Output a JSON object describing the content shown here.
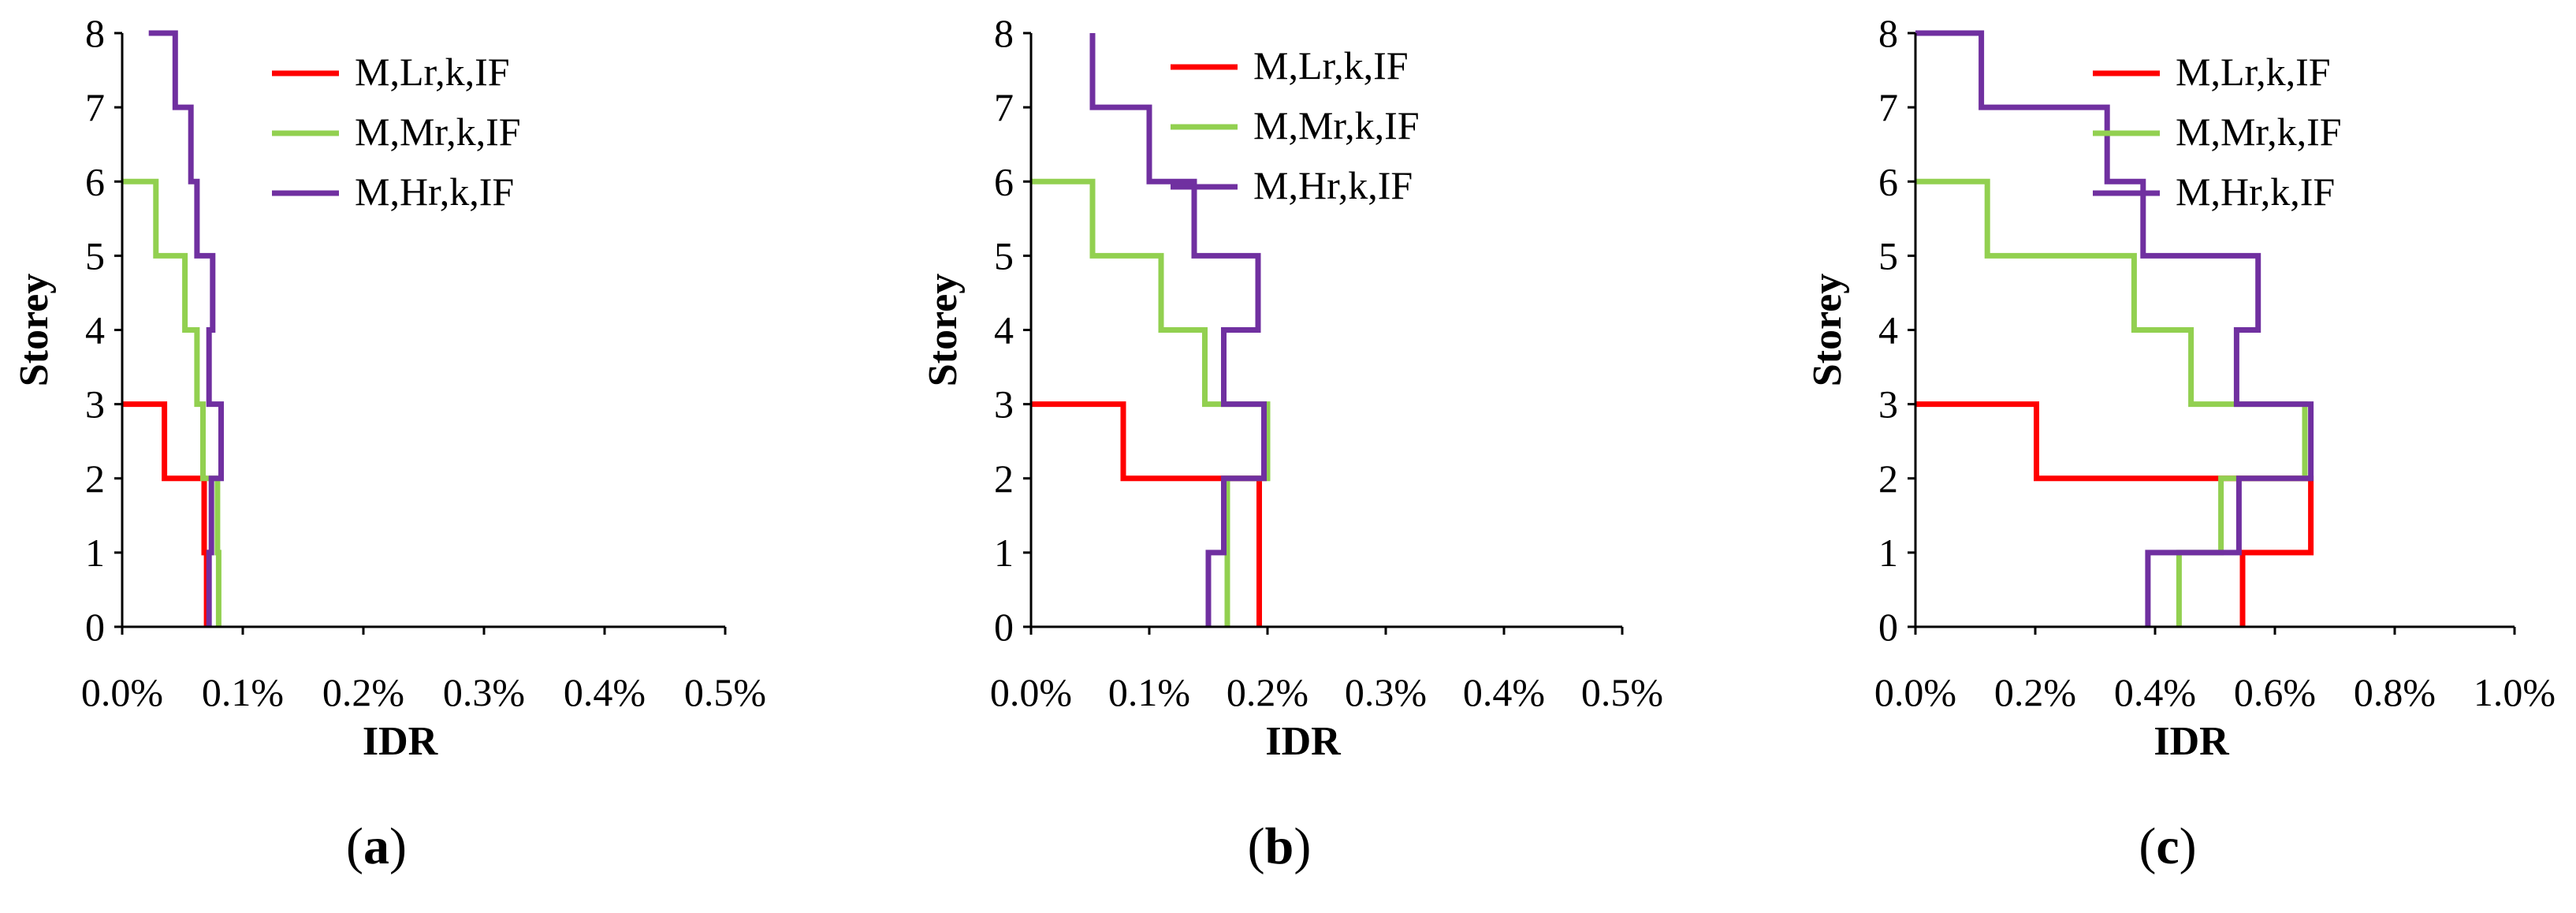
{
  "colors": {
    "low": "#ff0000",
    "mid": "#92d050",
    "high": "#7030a0",
    "axis": "#000000"
  },
  "chart_data": [
    {
      "type": "line",
      "panel_label": "a",
      "xlabel": "IDR",
      "ylabel": "Storey",
      "xlim": [
        0,
        0.5
      ],
      "ylim": [
        0,
        8
      ],
      "x_ticks": [
        0,
        0.1,
        0.2,
        0.3,
        0.4,
        0.5
      ],
      "x_tick_labels": [
        "0.0%",
        "0.1%",
        "0.2%",
        "0.3%",
        "0.4%",
        "0.5%"
      ],
      "y_ticks": [
        0,
        1,
        2,
        3,
        4,
        5,
        6,
        7,
        8
      ],
      "y_tick_labels": [
        "0",
        "1",
        "2",
        "3",
        "4",
        "5",
        "6",
        "7",
        "8"
      ],
      "legend_position": "top-right",
      "series": [
        {
          "name": "M,Lr,k,IF",
          "color_key": "low",
          "storeys": [
            1,
            2,
            3
          ],
          "idr": [
            0.07,
            0.068,
            0.035
          ]
        },
        {
          "name": "M,Mr,k,IF",
          "color_key": "mid",
          "storeys": [
            1,
            2,
            3,
            4,
            5,
            6
          ],
          "idr": [
            0.08,
            0.079,
            0.067,
            0.062,
            0.052,
            0.028
          ]
        },
        {
          "name": "M,Hr,k,IF",
          "color_key": "high",
          "storeys": [
            1,
            2,
            3,
            4,
            5,
            6,
            7,
            8
          ],
          "idr": [
            0.072,
            0.074,
            0.082,
            0.072,
            0.075,
            0.062,
            0.057,
            0.044
          ]
        }
      ],
      "series_top": {
        "low": [
          0,
          3
        ],
        "mid": [
          0,
          6
        ],
        "high": [
          0.022,
          8
        ]
      }
    },
    {
      "type": "line",
      "panel_label": "b",
      "xlabel": "IDR",
      "ylabel": "Storey",
      "xlim": [
        0,
        0.5
      ],
      "ylim": [
        0,
        8
      ],
      "x_ticks": [
        0,
        0.1,
        0.2,
        0.3,
        0.4,
        0.5
      ],
      "x_tick_labels": [
        "0.0%",
        "0.1%",
        "0.2%",
        "0.3%",
        "0.4%",
        "0.5%"
      ],
      "y_ticks": [
        0,
        1,
        2,
        3,
        4,
        5,
        6,
        7,
        8
      ],
      "y_tick_labels": [
        "0",
        "1",
        "2",
        "3",
        "4",
        "5",
        "6",
        "7",
        "8"
      ],
      "legend_position": "top-right",
      "series": [
        {
          "name": "M,Lr,k,IF",
          "color_key": "low",
          "storeys": [
            1,
            2,
            3
          ],
          "idr": [
            0.193,
            0.193,
            0.078
          ]
        },
        {
          "name": "M,Mr,k,IF",
          "color_key": "mid",
          "storeys": [
            1,
            2,
            3,
            4,
            5,
            6
          ],
          "idr": [
            0.166,
            0.166,
            0.2,
            0.147,
            0.11,
            0.052
          ]
        },
        {
          "name": "M,Hr,k,IF",
          "color_key": "high",
          "storeys": [
            1,
            2,
            3,
            4,
            5,
            6,
            7,
            8
          ],
          "idr": [
            0.15,
            0.163,
            0.197,
            0.163,
            0.192,
            0.138,
            0.1,
            0.052
          ]
        }
      ],
      "series_top": {
        "low": [
          0,
          3
        ],
        "mid": [
          0,
          6
        ],
        "high": [
          0.052,
          8
        ]
      }
    },
    {
      "type": "line",
      "panel_label": "c",
      "xlabel": "IDR",
      "ylabel": "Storey",
      "xlim": [
        0,
        1.0
      ],
      "ylim": [
        0,
        8
      ],
      "x_ticks": [
        0,
        0.2,
        0.4,
        0.6,
        0.8,
        1.0
      ],
      "x_tick_labels": [
        "0.0%",
        "0.2%",
        "0.4%",
        "0.6%",
        "0.8%",
        "1.0%"
      ],
      "y_ticks": [
        0,
        1,
        2,
        3,
        4,
        5,
        6,
        7,
        8
      ],
      "y_tick_labels": [
        "0",
        "1",
        "2",
        "3",
        "4",
        "5",
        "6",
        "7",
        "8"
      ],
      "legend_position": "top-right",
      "series": [
        {
          "name": "M,Lr,k,IF",
          "color_key": "low",
          "storeys": [
            1,
            2,
            3
          ],
          "idr": [
            0.546,
            0.66,
            0.202
          ]
        },
        {
          "name": "M,Mr,k,IF",
          "color_key": "mid",
          "storeys": [
            1,
            2,
            3,
            4,
            5,
            6
          ],
          "idr": [
            0.44,
            0.51,
            0.65,
            0.46,
            0.365,
            0.12
          ]
        },
        {
          "name": "M,Hr,k,IF",
          "color_key": "high",
          "storeys": [
            1,
            2,
            3,
            4,
            5,
            6,
            7,
            8
          ],
          "idr": [
            0.388,
            0.54,
            0.66,
            0.536,
            0.572,
            0.38,
            0.32,
            0.11
          ]
        }
      ],
      "series_top": {
        "low": [
          0,
          3
        ],
        "mid": [
          0,
          6
        ],
        "high": [
          0,
          8
        ]
      }
    }
  ]
}
